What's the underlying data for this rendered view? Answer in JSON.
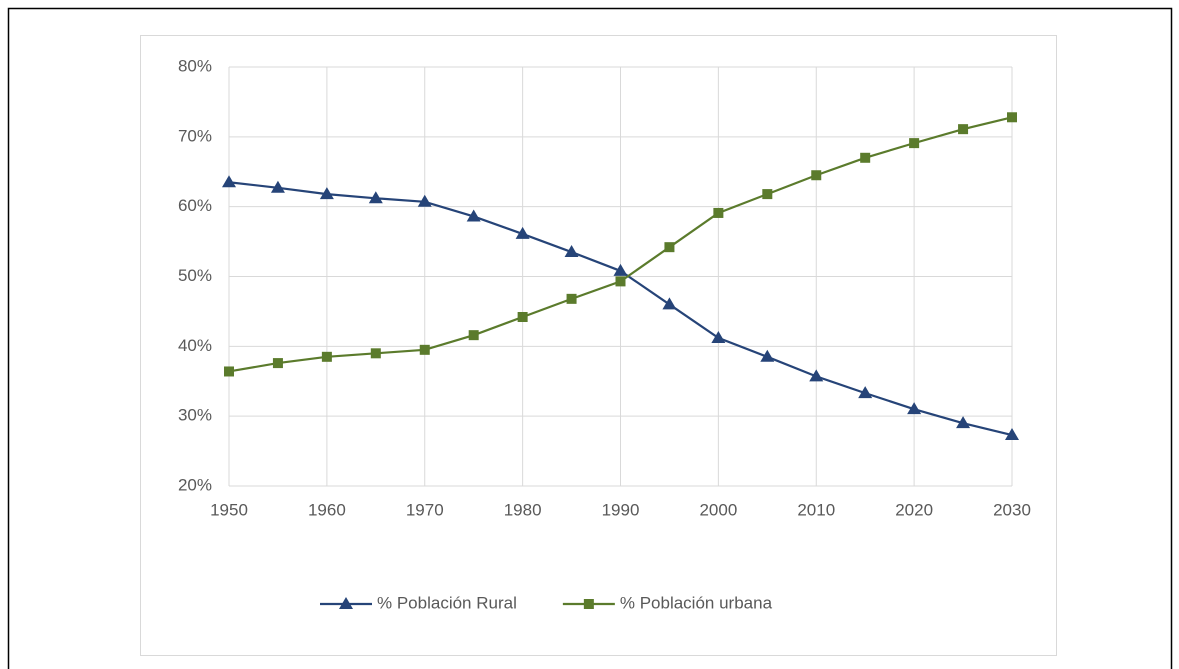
{
  "chart_data": {
    "type": "line",
    "x": [
      1950,
      1955,
      1960,
      1965,
      1970,
      1975,
      1980,
      1985,
      1990,
      1995,
      2000,
      2005,
      2010,
      2015,
      2020,
      2025,
      2030
    ],
    "series": [
      {
        "name": "% Población Rural",
        "color": "#264478",
        "marker": "triangle",
        "values": [
          63.5,
          62.7,
          61.8,
          61.2,
          60.7,
          58.6,
          56.1,
          53.5,
          50.8,
          46.0,
          41.2,
          38.5,
          35.7,
          33.3,
          31.0,
          29.0,
          27.3
        ]
      },
      {
        "name": "% Población urbana",
        "color": "#5b7b2c",
        "marker": "square",
        "values": [
          36.4,
          37.6,
          38.5,
          39.0,
          39.5,
          41.6,
          44.2,
          46.8,
          49.3,
          54.2,
          59.1,
          61.8,
          64.5,
          67.0,
          69.1,
          71.1,
          72.8
        ]
      }
    ],
    "xlim": [
      1950,
      2030
    ],
    "xticks": [
      1950,
      1960,
      1970,
      1980,
      1990,
      2000,
      2010,
      2020,
      2030
    ],
    "ylim": [
      20,
      80
    ],
    "yticks": [
      {
        "value": 20,
        "label": "20%"
      },
      {
        "value": 30,
        "label": "30%"
      },
      {
        "value": 40,
        "label": "40%"
      },
      {
        "value": 50,
        "label": "50%"
      },
      {
        "value": 60,
        "label": "60%"
      },
      {
        "value": 70,
        "label": "70%"
      },
      {
        "value": 80,
        "label": "80%"
      }
    ],
    "grid": true,
    "legend": "bottom"
  }
}
